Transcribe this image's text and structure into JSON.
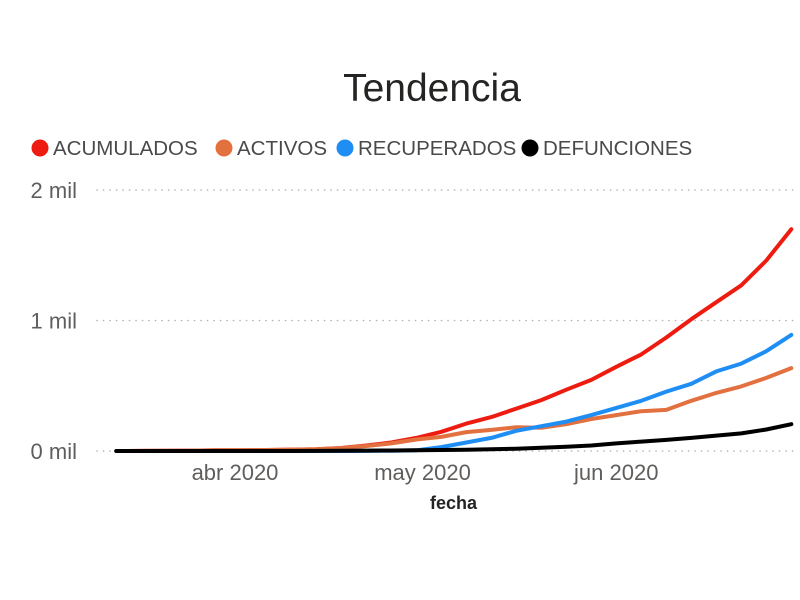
{
  "chart_data": {
    "type": "line",
    "title": "Tendencia",
    "xlabel": "fecha",
    "xlim": [
      "2020-03-13",
      "2020-06-29"
    ],
    "ylim": [
      0,
      2000
    ],
    "x_ticks": [
      {
        "label": "abr 2020",
        "date": "2020-04-01"
      },
      {
        "label": "may 2020",
        "date": "2020-05-01"
      },
      {
        "label": "jun 2020",
        "date": "2020-06-01"
      }
    ],
    "y_ticks": [
      {
        "label": "0 mil",
        "value": 0
      },
      {
        "label": "1 mil",
        "value": 1000
      },
      {
        "label": "2 mil",
        "value": 2000
      }
    ],
    "grid": true,
    "legend_position": "top-left",
    "x": [
      "2020-03-13",
      "2020-03-17",
      "2020-03-21",
      "2020-03-25",
      "2020-03-29",
      "2020-04-02",
      "2020-04-06",
      "2020-04-10",
      "2020-04-14",
      "2020-04-18",
      "2020-04-22",
      "2020-04-26",
      "2020-04-30",
      "2020-05-04",
      "2020-05-08",
      "2020-05-12",
      "2020-05-16",
      "2020-05-20",
      "2020-05-24",
      "2020-05-28",
      "2020-06-01",
      "2020-06-05",
      "2020-06-09",
      "2020-06-13",
      "2020-06-17",
      "2020-06-21",
      "2020-06-25",
      "2020-06-29"
    ],
    "series": [
      {
        "name": "ACUMULADOS",
        "color": "#EE1B10",
        "values": [
          0,
          1,
          2,
          3,
          5,
          6,
          8,
          11,
          14,
          23,
          42,
          65,
          100,
          147,
          210,
          260,
          325,
          390,
          470,
          545,
          645,
          740,
          870,
          1010,
          1140,
          1270,
          1460,
          1700
        ]
      },
      {
        "name": "ACTIVOS",
        "color": "#E3703F",
        "values": [
          0,
          1,
          2,
          3,
          5,
          6,
          8,
          10,
          13,
          22,
          38,
          58,
          88,
          108,
          145,
          162,
          182,
          178,
          205,
          245,
          275,
          305,
          315,
          385,
          445,
          495,
          560,
          635
        ]
      },
      {
        "name": "RECUPERADOS",
        "color": "#1E8EF5",
        "values": [
          0,
          0,
          0,
          0,
          0,
          0,
          0,
          0,
          0,
          0,
          1,
          2,
          5,
          30,
          65,
          100,
          155,
          190,
          225,
          275,
          330,
          385,
          455,
          515,
          610,
          670,
          765,
          890
        ]
      },
      {
        "name": "DEFUNCIONES",
        "color": "#000000",
        "values": [
          0,
          0,
          0,
          0,
          0,
          0,
          0,
          0,
          1,
          2,
          3,
          4,
          6,
          8,
          10,
          13,
          18,
          25,
          32,
          42,
          58,
          72,
          85,
          100,
          118,
          135,
          165,
          205
        ]
      }
    ]
  }
}
